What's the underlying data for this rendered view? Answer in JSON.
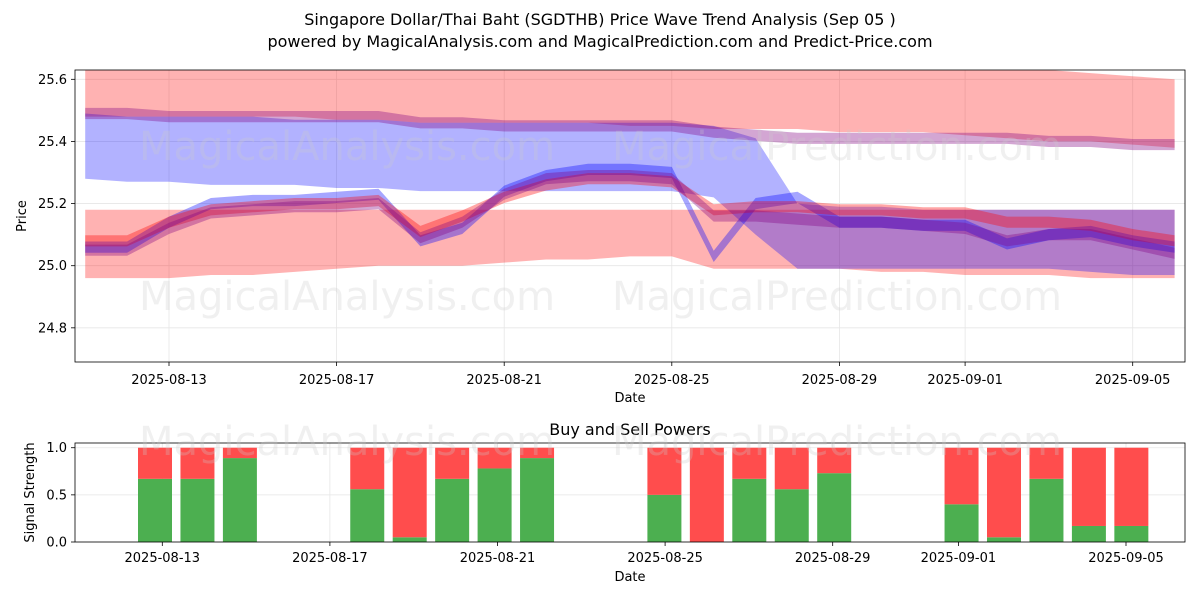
{
  "title": "Singapore Dollar/Thai Baht (SGDTHB) Price Wave Trend Analysis (Sep 05 )",
  "subtitle": "powered by MagicalAnalysis.com and MagicalPrediction.com and Predict-Price.com",
  "watermarks": [
    "MagicalAnalysis.com",
    "MagicalPrediction.com"
  ],
  "colors": {
    "red_band": "#ff0000",
    "blue_band": "#0000ff",
    "purple_band": "#800080",
    "buy": "#4caf50",
    "sell": "#ff4d4d"
  },
  "chart_data": [
    {
      "type": "area",
      "title": "",
      "xlabel": "Date",
      "ylabel": "Price",
      "ylim": [
        24.69,
        25.63
      ],
      "grid": true,
      "x_ticks": [
        "2025-08-13",
        "2025-08-17",
        "2025-08-21",
        "2025-08-25",
        "2025-08-29",
        "2025-09-01",
        "2025-09-05"
      ],
      "y_ticks": [
        "24.8",
        "25.0",
        "25.2",
        "25.4",
        "25.6"
      ],
      "dates": [
        "2025-08-11",
        "2025-08-12",
        "2025-08-13",
        "2025-08-14",
        "2025-08-15",
        "2025-08-16",
        "2025-08-17",
        "2025-08-18",
        "2025-08-19",
        "2025-08-20",
        "2025-08-21",
        "2025-08-22",
        "2025-08-23",
        "2025-08-24",
        "2025-08-25",
        "2025-08-26",
        "2025-08-27",
        "2025-08-28",
        "2025-08-29",
        "2025-08-30",
        "2025-08-31",
        "2025-09-01",
        "2025-09-02",
        "2025-09-03",
        "2025-09-04",
        "2025-09-05",
        "2025-09-06"
      ],
      "series": [
        {
          "color": "red",
          "kind": "band",
          "upper": [
            25.63,
            25.63,
            25.63,
            25.63,
            25.63,
            25.63,
            25.63,
            25.63,
            25.63,
            25.63,
            25.63,
            25.63,
            25.63,
            25.63,
            25.63,
            25.63,
            25.63,
            25.63,
            25.63,
            25.63,
            25.63,
            25.63,
            25.63,
            25.63,
            25.62,
            25.61,
            25.6
          ],
          "lower": [
            25.48,
            25.48,
            25.48,
            25.48,
            25.48,
            25.48,
            25.47,
            25.47,
            25.46,
            25.46,
            25.46,
            25.46,
            25.46,
            25.45,
            25.45,
            25.44,
            25.44,
            25.44,
            25.43,
            25.43,
            25.43,
            25.42,
            25.41,
            25.4,
            25.4,
            25.39,
            25.38
          ]
        },
        {
          "color": "red",
          "kind": "band",
          "upper": [
            25.18,
            25.18,
            25.18,
            25.18,
            25.18,
            25.18,
            25.18,
            25.18,
            25.18,
            25.18,
            25.18,
            25.18,
            25.18,
            25.18,
            25.18,
            25.18,
            25.18,
            25.18,
            25.18,
            25.18,
            25.18,
            25.18,
            25.18,
            25.18,
            25.18,
            25.18,
            25.18
          ],
          "lower": [
            24.96,
            24.96,
            24.96,
            24.97,
            24.97,
            24.98,
            24.99,
            25.0,
            25.0,
            25.0,
            25.01,
            25.02,
            25.02,
            25.03,
            25.03,
            24.99,
            24.99,
            24.99,
            24.99,
            24.98,
            24.98,
            24.97,
            24.97,
            24.97,
            24.96,
            24.96,
            24.96
          ]
        },
        {
          "color": "blue",
          "kind": "band",
          "upper": [
            25.49,
            25.48,
            25.48,
            25.48,
            25.48,
            25.47,
            25.47,
            25.47,
            25.46,
            25.46,
            25.46,
            25.46,
            25.46,
            25.46,
            25.46,
            25.45,
            25.41,
            25.2,
            25.19,
            25.19,
            25.18,
            25.18,
            25.18,
            25.18,
            25.18,
            25.18,
            25.18
          ],
          "lower": [
            25.28,
            25.27,
            25.27,
            25.26,
            25.26,
            25.26,
            25.25,
            25.25,
            25.24,
            25.24,
            25.24,
            25.24,
            25.24,
            25.24,
            25.24,
            25.22,
            25.1,
            24.99,
            24.99,
            24.99,
            24.99,
            24.99,
            24.99,
            24.99,
            24.98,
            24.97,
            24.97
          ]
        },
        {
          "color": "purple",
          "kind": "line",
          "values": [
            25.49,
            25.49,
            25.48,
            25.48,
            25.48,
            25.48,
            25.48,
            25.48,
            25.46,
            25.46,
            25.45,
            25.45,
            25.45,
            25.45,
            25.45,
            25.43,
            25.42,
            25.41,
            25.41,
            25.41,
            25.41,
            25.41,
            25.41,
            25.4,
            25.4,
            25.39,
            25.39
          ]
        },
        {
          "color": "blue",
          "kind": "line",
          "values": [
            25.06,
            25.06,
            25.14,
            25.2,
            25.21,
            25.21,
            25.22,
            25.23,
            25.08,
            25.12,
            25.24,
            25.29,
            25.31,
            25.31,
            25.3,
            25.03,
            25.2,
            25.22,
            25.14,
            25.14,
            25.13,
            25.13,
            25.07,
            25.1,
            25.11,
            25.08,
            25.06
          ]
        },
        {
          "color": "red",
          "kind": "line",
          "values": [
            25.08,
            25.08,
            25.14,
            25.18,
            25.19,
            25.2,
            25.2,
            25.21,
            25.11,
            25.16,
            25.22,
            25.26,
            25.28,
            25.28,
            25.27,
            25.18,
            25.19,
            25.19,
            25.18,
            25.18,
            25.17,
            25.17,
            25.14,
            25.14,
            25.13,
            25.1,
            25.08
          ]
        },
        {
          "color": "purple",
          "kind": "line",
          "values": [
            25.05,
            25.05,
            25.12,
            25.17,
            25.18,
            25.19,
            25.19,
            25.2,
            25.09,
            25.14,
            25.23,
            25.28,
            25.29,
            25.29,
            25.28,
            25.16,
            25.16,
            25.15,
            25.14,
            25.14,
            25.13,
            25.12,
            25.08,
            25.1,
            25.1,
            25.07,
            25.04
          ]
        }
      ]
    },
    {
      "type": "bar",
      "title": "Buy and Sell Powers",
      "xlabel": "Date",
      "ylabel": "Signal Strength",
      "ylim": [
        0,
        1.05
      ],
      "grid": true,
      "x_ticks": [
        "2025-08-13",
        "2025-08-17",
        "2025-08-21",
        "2025-08-25",
        "2025-08-29",
        "2025-09-01",
        "2025-09-05"
      ],
      "y_ticks": [
        "0.0",
        "0.5",
        "1.0"
      ],
      "categories": [
        "2025-08-12",
        "2025-08-13",
        "2025-08-14",
        "2025-08-17",
        "2025-08-18",
        "2025-08-19",
        "2025-08-20",
        "2025-08-21",
        "2025-08-24",
        "2025-08-25",
        "2025-08-26",
        "2025-08-27",
        "2025-08-28",
        "2025-08-31",
        "2025-09-01",
        "2025-09-02",
        "2025-09-03",
        "2025-09-04"
      ],
      "series": [
        {
          "color": "green",
          "values": [
            0.67,
            0.67,
            0.89,
            0.56,
            0.05,
            0.67,
            0.78,
            0.89,
            0.5,
            0.0,
            0.67,
            0.56,
            0.73,
            0.4,
            0.05,
            0.67,
            0.17,
            0.17
          ]
        },
        {
          "color": "red",
          "values": [
            0.33,
            0.33,
            0.11,
            0.44,
            0.95,
            0.33,
            0.22,
            0.11,
            0.5,
            1.0,
            0.33,
            0.44,
            0.27,
            0.6,
            0.95,
            0.33,
            0.83,
            0.83
          ]
        }
      ]
    }
  ]
}
